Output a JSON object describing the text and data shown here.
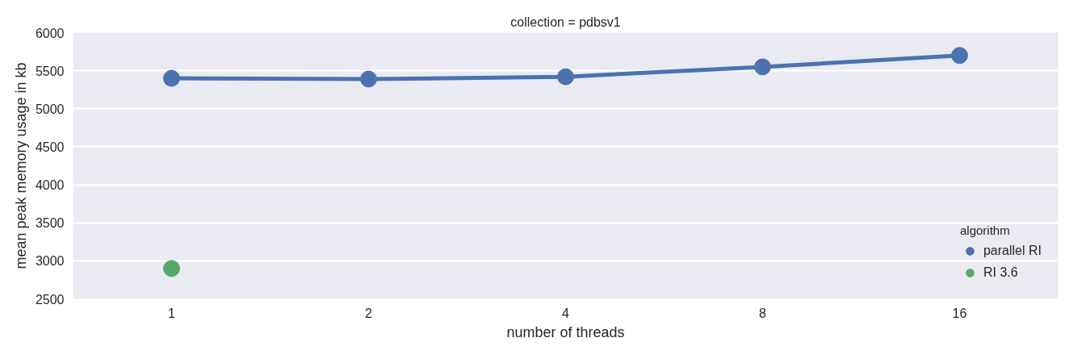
{
  "chart_data": {
    "type": "line",
    "title": "collection = pdbsv1",
    "xlabel": "number of threads",
    "ylabel": "mean peak memory usage in kb",
    "legend_title": "algorithm",
    "categories": [
      "1",
      "2",
      "4",
      "8",
      "16"
    ],
    "series": [
      {
        "name": "parallel RI",
        "color": "#4c72b0",
        "values": [
          5400,
          5390,
          5420,
          5550,
          5700
        ]
      },
      {
        "name": "RI 3.6",
        "color": "#55a868",
        "type": "scatter",
        "values": [
          2900,
          null,
          null,
          null,
          null
        ]
      }
    ],
    "ylim": [
      2500,
      6000
    ],
    "yticks": [
      2500,
      3000,
      3500,
      4000,
      4500,
      5000,
      5500,
      6000
    ],
    "grid": "y",
    "legend": "bottom right",
    "marker": "circle"
  }
}
